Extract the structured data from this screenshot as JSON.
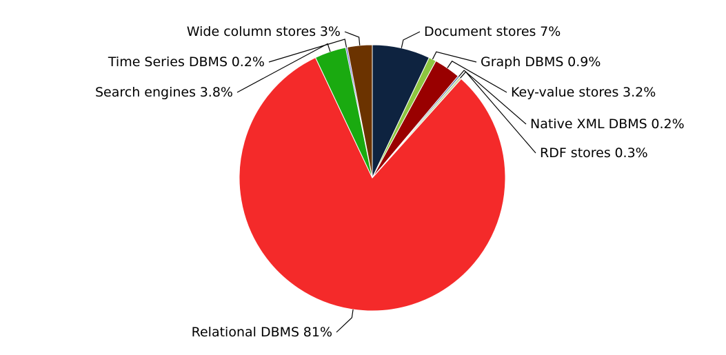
{
  "chart_data": {
    "type": "pie",
    "categories": [
      "Document stores",
      "Graph DBMS",
      "Key-value stores",
      "Native XML DBMS",
      "RDF stores",
      "Relational DBMS",
      "Search engines",
      "Time Series DBMS",
      "Wide column stores"
    ],
    "values": [
      7,
      0.9,
      3.2,
      0.2,
      0.3,
      81,
      3.8,
      0.2,
      3
    ],
    "value_labels": [
      "7%",
      "0.9%",
      "3.2%",
      "0.2%",
      "0.3%",
      "81%",
      "3.8%",
      "0.2%",
      "3%"
    ],
    "colors": [
      "#0e2340",
      "#8dc63f",
      "#990000",
      "#4a6fa5",
      "#c8d8a0",
      "#f42a2a",
      "#1aaa10",
      "#6666cc",
      "#6b3300"
    ]
  }
}
